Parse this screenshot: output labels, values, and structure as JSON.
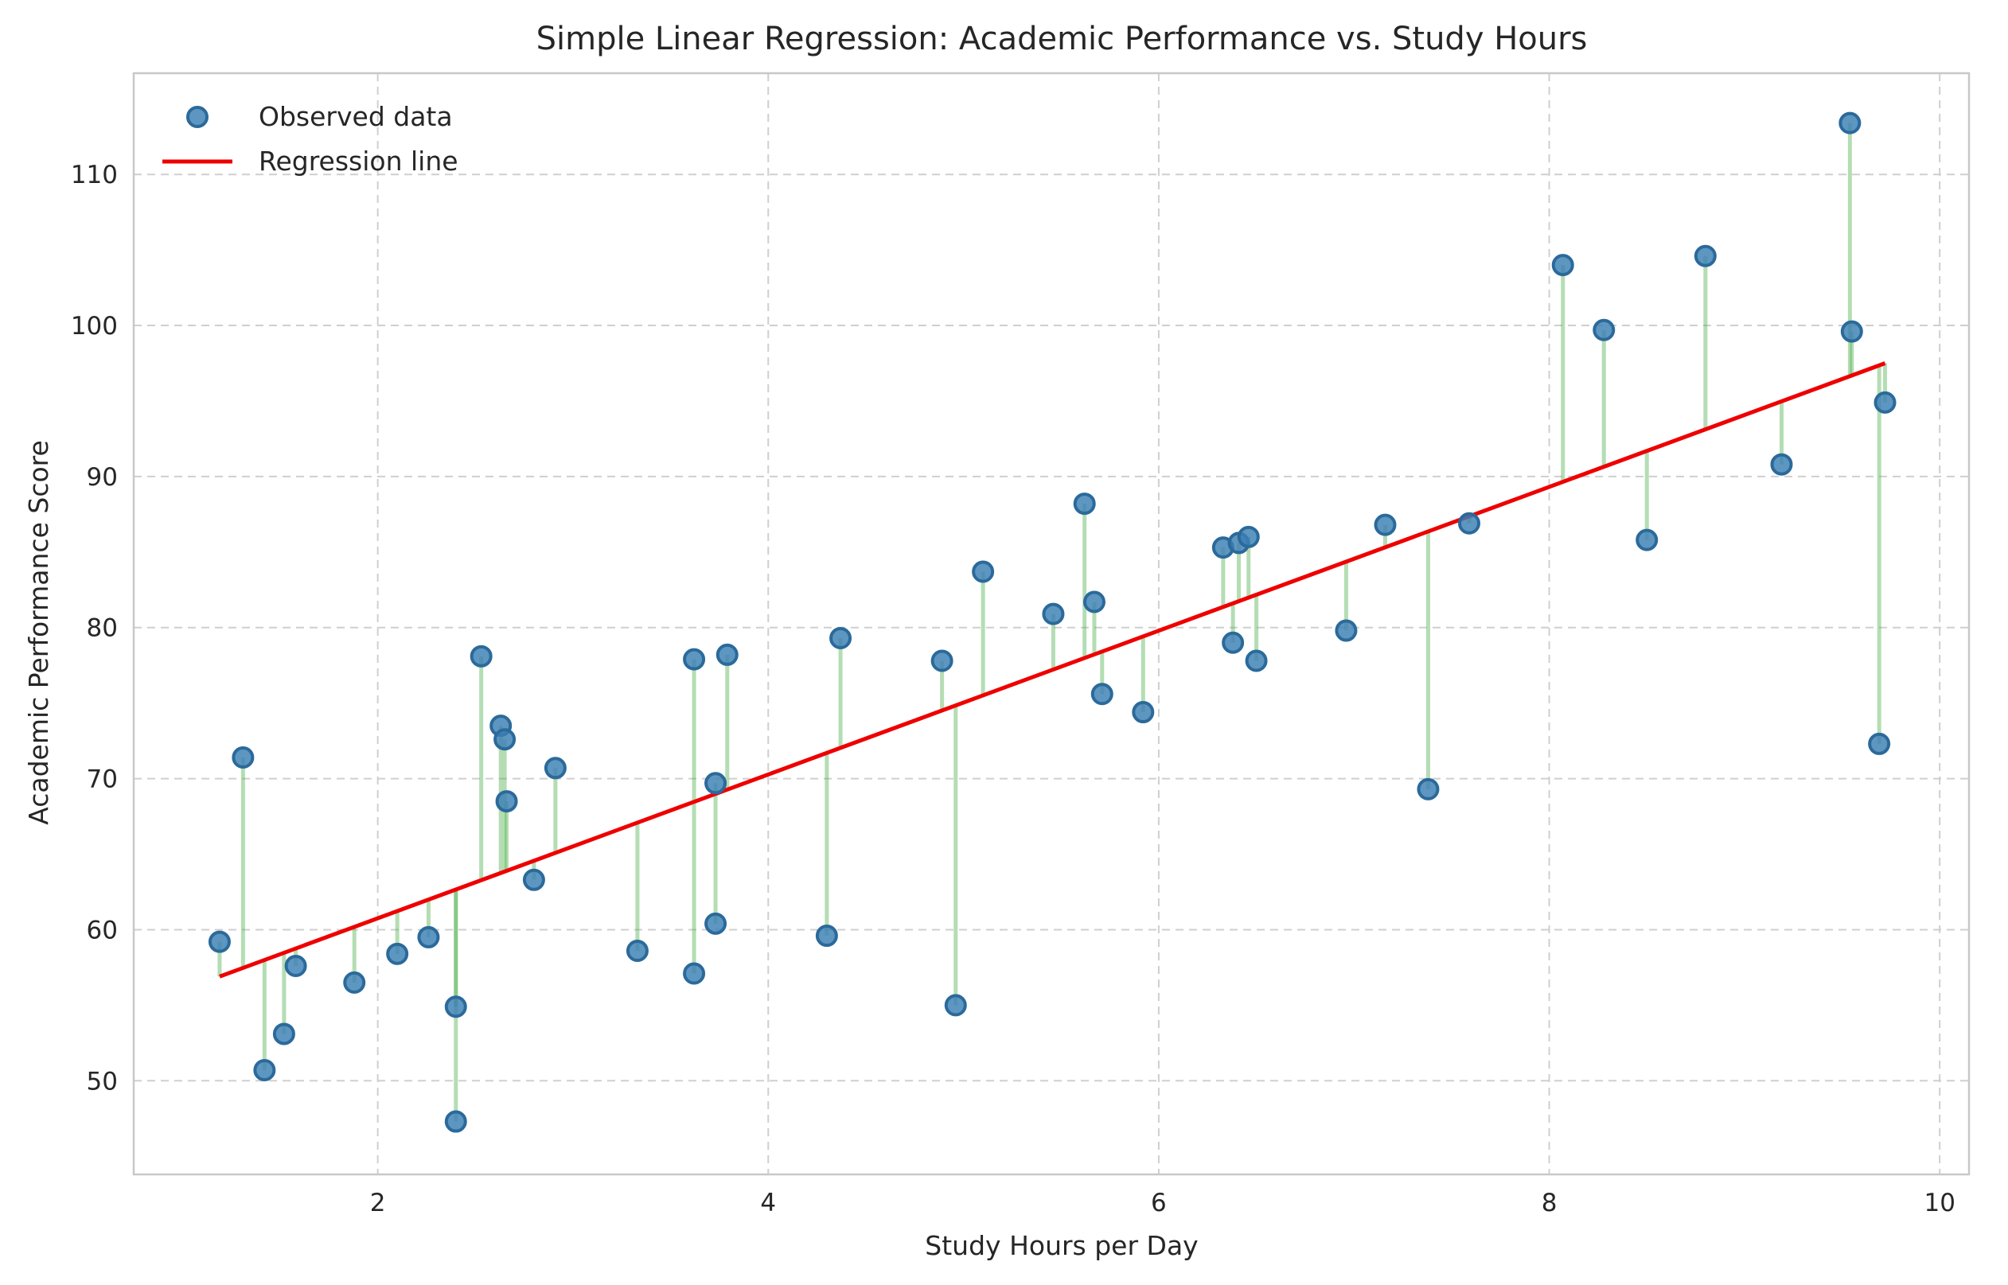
{
  "chart_data": {
    "type": "scatter",
    "title": "Simple Linear Regression: Academic Performance vs. Study Hours",
    "xlabel": "Study Hours per Day",
    "ylabel": "Academic Performance Score",
    "xlim": [
      0.75,
      10.15
    ],
    "ylim": [
      43.8,
      116.7
    ],
    "xticks": [
      2,
      4,
      6,
      8,
      10
    ],
    "yticks": [
      50,
      60,
      70,
      80,
      90,
      100,
      110
    ],
    "grid": true,
    "legend_position": "top-left",
    "legend": [
      {
        "label": "Observed data",
        "marker": "circle",
        "color": "#3a7fb5"
      },
      {
        "label": "Regression line",
        "marker": "line",
        "color": "#ee0000"
      }
    ],
    "series": [
      {
        "name": "Observed data",
        "type": "scatter",
        "color": "#3a7fb5",
        "points": [
          [
            1.19,
            59.2
          ],
          [
            1.31,
            71.4
          ],
          [
            1.42,
            50.7
          ],
          [
            1.52,
            53.1
          ],
          [
            1.58,
            57.6
          ],
          [
            1.88,
            56.5
          ],
          [
            2.1,
            58.4
          ],
          [
            2.26,
            59.5
          ],
          [
            2.4,
            54.9
          ],
          [
            2.4,
            47.3
          ],
          [
            2.53,
            78.1
          ],
          [
            2.63,
            73.5
          ],
          [
            2.65,
            72.6
          ],
          [
            2.66,
            68.5
          ],
          [
            2.8,
            63.3
          ],
          [
            2.91,
            70.7
          ],
          [
            3.33,
            58.6
          ],
          [
            3.62,
            57.1
          ],
          [
            3.62,
            77.9
          ],
          [
            3.73,
            60.4
          ],
          [
            3.73,
            69.7
          ],
          [
            3.79,
            78.2
          ],
          [
            4.3,
            59.6
          ],
          [
            4.37,
            79.3
          ],
          [
            4.89,
            77.8
          ],
          [
            4.96,
            55.0
          ],
          [
            5.1,
            83.7
          ],
          [
            5.46,
            80.9
          ],
          [
            5.62,
            88.2
          ],
          [
            5.67,
            81.7
          ],
          [
            5.71,
            75.6
          ],
          [
            5.92,
            74.4
          ],
          [
            6.33,
            85.3
          ],
          [
            6.38,
            79.0
          ],
          [
            6.41,
            85.6
          ],
          [
            6.46,
            86.0
          ],
          [
            6.5,
            77.8
          ],
          [
            6.96,
            79.8
          ],
          [
            7.16,
            86.8
          ],
          [
            7.38,
            69.3
          ],
          [
            7.59,
            86.9
          ],
          [
            8.07,
            104.0
          ],
          [
            8.28,
            99.7
          ],
          [
            8.5,
            85.8
          ],
          [
            8.8,
            104.6
          ],
          [
            9.19,
            90.8
          ],
          [
            9.54,
            113.4
          ],
          [
            9.55,
            99.6
          ],
          [
            9.69,
            72.3
          ],
          [
            9.72,
            94.9
          ]
        ]
      },
      {
        "name": "Regression line",
        "type": "line",
        "color": "#ee0000",
        "x": [
          1.19,
          9.72
        ],
        "y": [
          56.9,
          97.5
        ]
      }
    ]
  }
}
